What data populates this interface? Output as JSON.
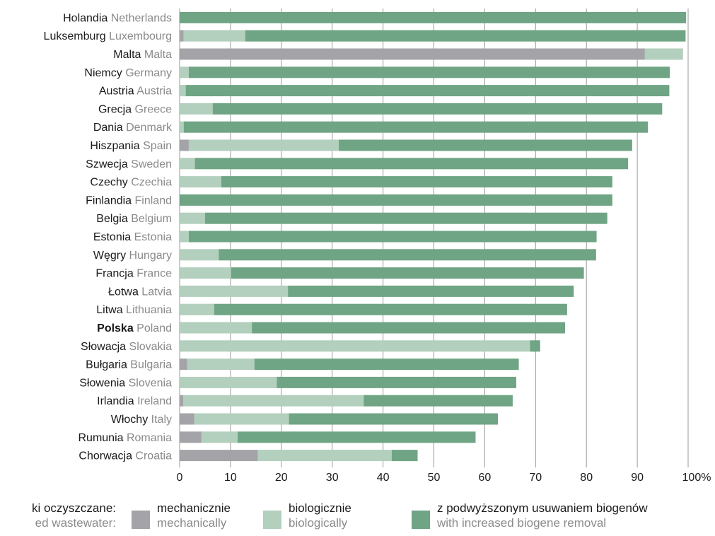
{
  "colors": {
    "mechanical": "#a4a4a8",
    "biological": "#b3cfbd",
    "biogene": "#6fa584",
    "grid": "#9a9a9a"
  },
  "chart_data": {
    "type": "bar",
    "orientation": "horizontal",
    "stacked": true,
    "xlim": [
      0,
      100
    ],
    "x_ticks": [
      "0",
      "10",
      "20",
      "30",
      "40",
      "50",
      "60",
      "70",
      "80",
      "90",
      "100%"
    ],
    "grid": true,
    "legend_position": "bottom",
    "categories": [
      {
        "pl": "Holandia",
        "en": "Netherlands",
        "bold": false
      },
      {
        "pl": "Luksemburg",
        "en": "Luxembourg",
        "bold": false
      },
      {
        "pl": "Malta",
        "en": "Malta",
        "bold": false
      },
      {
        "pl": "Niemcy",
        "en": "Germany",
        "bold": false
      },
      {
        "pl": "Austria",
        "en": "Austria",
        "bold": false
      },
      {
        "pl": "Grecja",
        "en": "Greece",
        "bold": false
      },
      {
        "pl": "Dania",
        "en": "Denmark",
        "bold": false
      },
      {
        "pl": "Hiszpania",
        "en": "Spain",
        "bold": false
      },
      {
        "pl": "Szwecja",
        "en": "Sweden",
        "bold": false
      },
      {
        "pl": "Czechy",
        "en": "Czechia",
        "bold": false
      },
      {
        "pl": "Finlandia",
        "en": "Finland",
        "bold": false
      },
      {
        "pl": "Belgia",
        "en": "Belgium",
        "bold": false
      },
      {
        "pl": "Estonia",
        "en": "Estonia",
        "bold": false
      },
      {
        "pl": "Węgry",
        "en": "Hungary",
        "bold": false
      },
      {
        "pl": "Francja",
        "en": "France",
        "bold": false
      },
      {
        "pl": "Łotwa",
        "en": "Latvia",
        "bold": false
      },
      {
        "pl": "Litwa",
        "en": "Lithuania",
        "bold": false
      },
      {
        "pl": "Polska",
        "en": "Poland",
        "bold": true
      },
      {
        "pl": "Słowacja",
        "en": "Slovakia",
        "bold": false
      },
      {
        "pl": "Bułgaria",
        "en": "Bulgaria",
        "bold": false
      },
      {
        "pl": "Słowenia",
        "en": "Slovenia",
        "bold": false
      },
      {
        "pl": "Irlandia",
        "en": "Ireland",
        "bold": false
      },
      {
        "pl": "Włochy",
        "en": "Italy",
        "bold": false
      },
      {
        "pl": "Rumunia",
        "en": "Romania",
        "bold": false
      },
      {
        "pl": "Chorwacja",
        "en": "Croatia",
        "bold": false
      }
    ],
    "series": [
      {
        "key": "mechanical",
        "name_pl": "mechanicznie",
        "name_en": "mechanically",
        "values": [
          0,
          0.8,
          91.5,
          0,
          0,
          0,
          0,
          1.8,
          0,
          0,
          0,
          0,
          0,
          0,
          0,
          0,
          0,
          0,
          0,
          1.5,
          0,
          0.7,
          2.9,
          4.3,
          15.4
        ]
      },
      {
        "key": "biological",
        "name_pl": "biologicznie",
        "name_en": "biologically",
        "values": [
          0,
          12.1,
          7.5,
          1.8,
          1.2,
          6.5,
          0.8,
          29.5,
          3.0,
          8.2,
          0,
          5.0,
          1.8,
          7.7,
          10.1,
          21.3,
          6.8,
          14.2,
          68.9,
          13.2,
          19.1,
          35.5,
          18.6,
          7.1,
          26.3
        ]
      },
      {
        "key": "biogene",
        "name_pl": "z podwyższonym usuwaniem biogenów",
        "name_en": "with increased biogene removal",
        "values": [
          99.6,
          86.6,
          0,
          94.6,
          95.1,
          88.4,
          91.3,
          57.7,
          85.2,
          76.9,
          85.1,
          79.1,
          80.2,
          74.2,
          69.4,
          56.2,
          69.4,
          61.6,
          2.0,
          52.0,
          47.1,
          29.3,
          41.1,
          46.8,
          5.1
        ]
      }
    ]
  },
  "legend": {
    "title_pl": "ki oczyszczane:",
    "title_en": "ed wastewater:"
  }
}
